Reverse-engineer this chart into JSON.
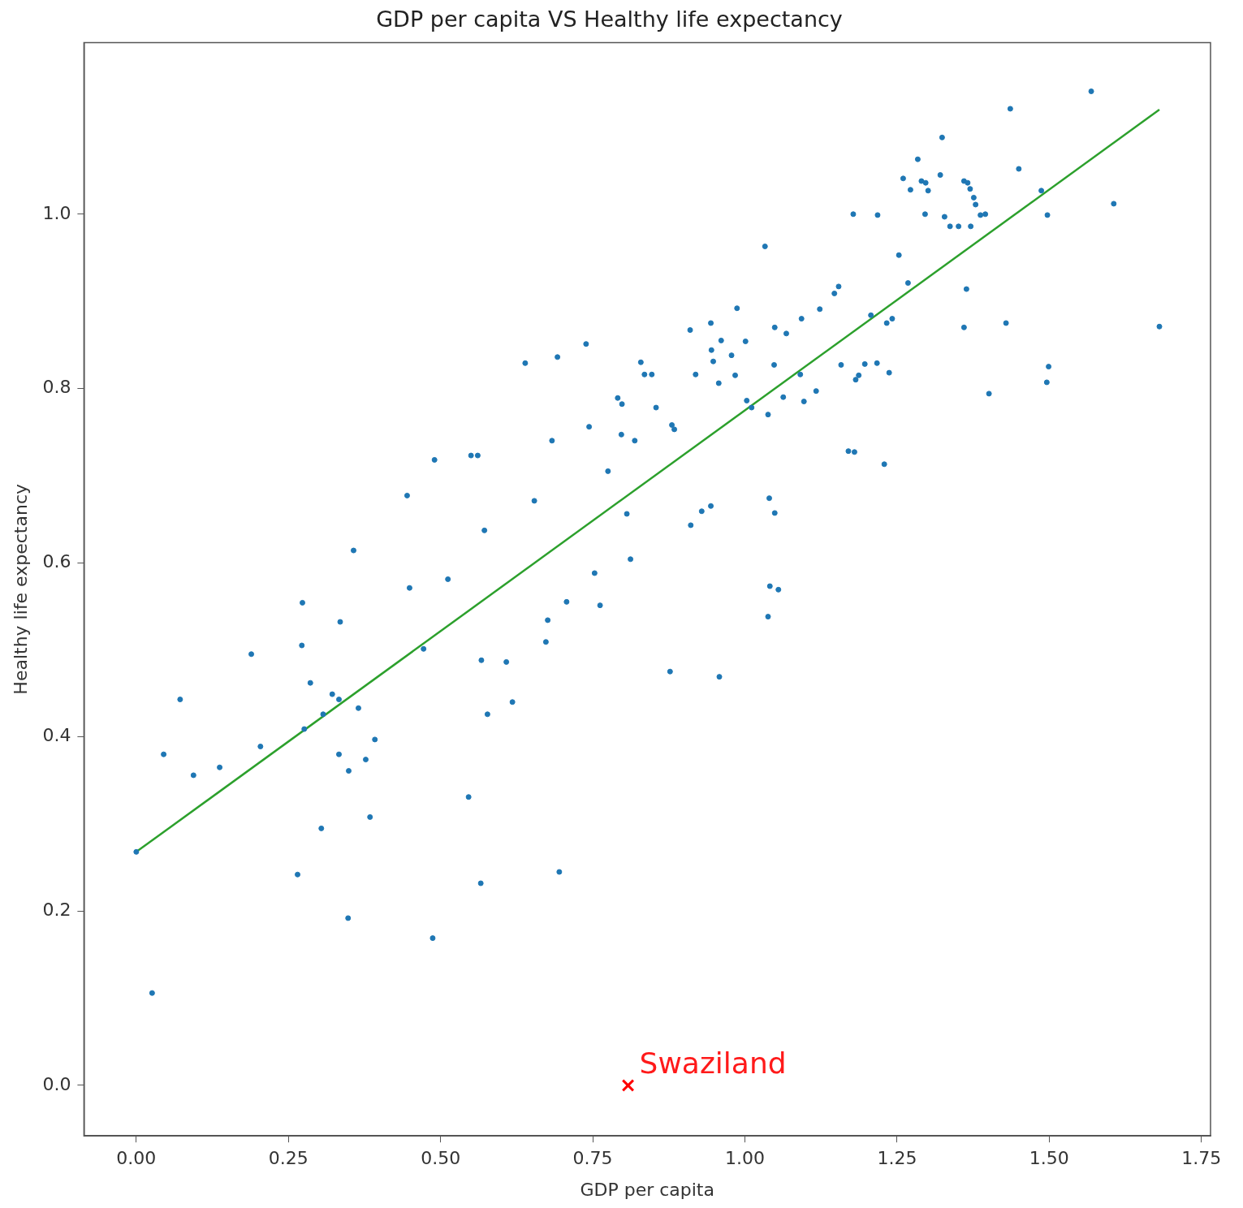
{
  "chart_data": {
    "type": "scatter",
    "title": "GDP per capita VS Healthy life expectancy",
    "xlabel": "GDP per capita",
    "ylabel": "Healthy life expectancy",
    "xlim": [
      -0.086,
      1.765
    ],
    "ylim": [
      -0.058,
      1.197
    ],
    "xticks": [
      {
        "value": 0,
        "label": "0.00"
      },
      {
        "value": 0.25,
        "label": "0.25"
      },
      {
        "value": 0.5,
        "label": "0.50"
      },
      {
        "value": 0.75,
        "label": "0.75"
      },
      {
        "value": 1,
        "label": "1.00"
      },
      {
        "value": 1.25,
        "label": "1.25"
      },
      {
        "value": 1.5,
        "label": "1.50"
      },
      {
        "value": 1.75,
        "label": "1.75"
      }
    ],
    "yticks": [
      {
        "value": 0,
        "label": "0.0"
      },
      {
        "value": 0.2,
        "label": "0.2"
      },
      {
        "value": 0.4,
        "label": "0.4"
      },
      {
        "value": 0.6,
        "label": "0.6"
      },
      {
        "value": 0.8,
        "label": "0.8"
      },
      {
        "value": 1,
        "label": "1.0"
      }
    ],
    "marker": "circle",
    "series": [
      {
        "color": "#1f77b4",
        "x": [
          0.0,
          0.026,
          0.045,
          0.072,
          0.094,
          0.137,
          0.189,
          0.204,
          0.273,
          0.272,
          0.276,
          0.286,
          0.265,
          0.304,
          0.307,
          0.322,
          0.333,
          0.335,
          0.333,
          0.349,
          0.357,
          0.365,
          0.348,
          0.377,
          0.384,
          0.392,
          0.445,
          0.449,
          0.472,
          0.49,
          0.487,
          0.512,
          0.546,
          0.55,
          0.561,
          0.566,
          0.567,
          0.572,
          0.577,
          0.608,
          0.618,
          0.639,
          0.654,
          0.673,
          0.676,
          0.683,
          0.692,
          0.695,
          0.707,
          0.739,
          0.744,
          0.753,
          0.762,
          0.775,
          0.791,
          0.798,
          0.797,
          0.806,
          0.812,
          0.819,
          0.829,
          0.835,
          0.847,
          0.854,
          0.877,
          0.88,
          0.884,
          0.91,
          0.911,
          0.919,
          0.929,
          0.944,
          0.944,
          0.945,
          0.948,
          0.957,
          0.961,
          0.958,
          0.978,
          0.984,
          0.987,
          1.001,
          1.003,
          1.011,
          1.033,
          1.038,
          1.04,
          1.038,
          1.041,
          1.049,
          1.048,
          1.049,
          1.055,
          1.063,
          1.068,
          1.091,
          1.093,
          1.097,
          1.117,
          1.123,
          1.147,
          1.154,
          1.158,
          1.17,
          1.18,
          1.178,
          1.182,
          1.187,
          1.197,
          1.207,
          1.217,
          1.218,
          1.229,
          1.233,
          1.237,
          1.242,
          1.253,
          1.26,
          1.268,
          1.272,
          1.284,
          1.29,
          1.296,
          1.297,
          1.301,
          1.324,
          1.321,
          1.328,
          1.337,
          1.351,
          1.36,
          1.366,
          1.37,
          1.376,
          1.379,
          1.371,
          1.387,
          1.395,
          1.364,
          1.36,
          1.401,
          1.429,
          1.436,
          1.45,
          1.487,
          1.497,
          1.499,
          1.496,
          1.569,
          1.606,
          1.681
        ],
        "values": [
          0.268,
          0.106,
          0.38,
          0.443,
          0.356,
          0.365,
          0.495,
          0.389,
          0.554,
          0.505,
          0.409,
          0.462,
          0.242,
          0.295,
          0.426,
          0.449,
          0.443,
          0.532,
          0.38,
          0.361,
          0.614,
          0.433,
          0.192,
          0.374,
          0.308,
          0.397,
          0.677,
          0.571,
          0.501,
          0.718,
          0.169,
          0.581,
          0.331,
          0.723,
          0.723,
          0.232,
          0.488,
          0.637,
          0.426,
          0.486,
          0.44,
          0.829,
          0.671,
          0.509,
          0.534,
          0.74,
          0.836,
          0.245,
          0.555,
          0.851,
          0.756,
          0.588,
          0.551,
          0.705,
          0.789,
          0.782,
          0.747,
          0.656,
          0.604,
          0.74,
          0.83,
          0.816,
          0.816,
          0.778,
          0.475,
          0.758,
          0.753,
          0.867,
          0.643,
          0.816,
          0.659,
          0.875,
          0.665,
          0.844,
          0.831,
          0.806,
          0.855,
          0.469,
          0.838,
          0.815,
          0.892,
          0.854,
          0.786,
          0.778,
          0.963,
          0.77,
          0.674,
          0.538,
          0.573,
          0.87,
          0.827,
          0.657,
          0.569,
          0.79,
          0.863,
          0.816,
          0.88,
          0.785,
          0.797,
          0.891,
          0.909,
          0.917,
          0.827,
          0.728,
          0.727,
          1.0,
          0.81,
          0.815,
          0.828,
          0.884,
          0.829,
          0.999,
          0.713,
          0.875,
          0.818,
          0.88,
          0.953,
          1.041,
          0.921,
          1.028,
          1.063,
          1.038,
          1.0,
          1.036,
          1.027,
          1.088,
          1.045,
          0.997,
          0.986,
          0.986,
          1.038,
          1.036,
          1.029,
          1.019,
          1.011,
          0.986,
          0.999,
          1.0,
          0.914,
          0.87,
          0.794,
          0.875,
          1.121,
          1.052,
          1.027,
          0.999,
          0.825,
          0.807,
          1.141,
          1.012,
          0.871
        ]
      },
      {
        "type": "line",
        "color": "#2ca02c",
        "marker": "none",
        "line_style": "solid",
        "x": [
          0,
          1.681
        ],
        "values": [
          0.268,
          1.12
        ]
      },
      {
        "type": "scatter",
        "color": "#ff0000",
        "marker": "cross",
        "x": [
          0.808
        ],
        "values": [
          0.0
        ]
      }
    ],
    "annotations": [
      {
        "text": "Swaziland",
        "x": 0.808,
        "y": 0.0
      }
    ]
  }
}
